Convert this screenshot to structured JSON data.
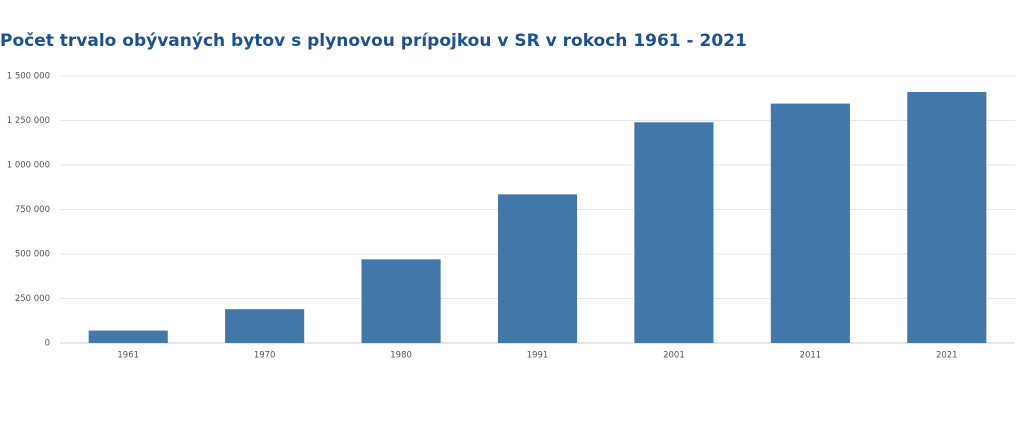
{
  "chart_data": {
    "type": "bar",
    "title": "Počet trvalo obývaných bytov s plynovou prípojkou v SR v rokoch 1961 - 2021",
    "categories": [
      "1961",
      "1970",
      "1980",
      "1991",
      "2001",
      "2011",
      "2021"
    ],
    "values": [
      70000,
      190000,
      470000,
      835000,
      1240000,
      1345000,
      1410000
    ],
    "color": "#4277aa",
    "ylim": [
      0,
      1500000
    ],
    "yticks": [
      0,
      {
        "value": 250000,
        "label": "250 000"
      },
      {
        "value": 500000,
        "label": "500 000"
      },
      {
        "value": 750000,
        "label": "750 000"
      },
      {
        "value": 1000000,
        "label": "1 000 000"
      },
      {
        "value": 1250000,
        "label": "1 250 000"
      },
      {
        "value": 1500000,
        "label": "1 500 000"
      }
    ],
    "grid": true
  }
}
